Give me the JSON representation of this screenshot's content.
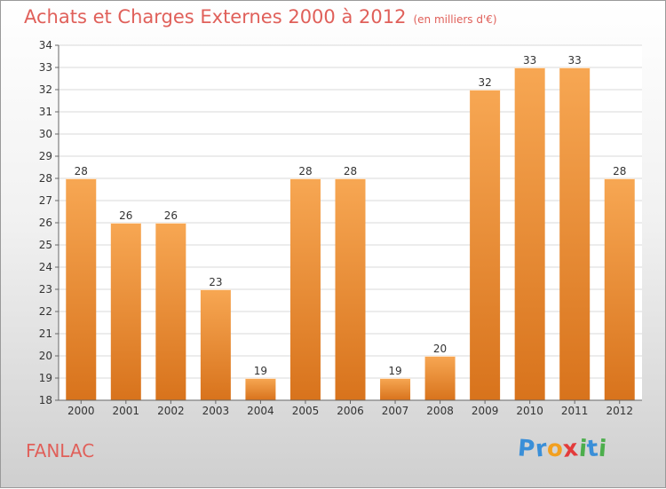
{
  "header": {
    "title": "Achats et Charges Externes 2000 à 2012",
    "unit": "(en milliers d'€)"
  },
  "commune": "FANLAC",
  "logo": {
    "letters": [
      "P",
      "r",
      "o",
      "x",
      "i",
      "t",
      "i"
    ],
    "colors": [
      "#3a8fd8",
      "#3a8fd8",
      "#f2a020",
      "#e33b3b",
      "#4cae4c",
      "#3a8fd8",
      "#4cae4c"
    ]
  },
  "colors": {
    "bar_top": "#f7a753",
    "bar_bottom": "#d8731c",
    "title": "#e0605a",
    "grid": "#d9d9d9"
  },
  "chart_data": {
    "type": "bar",
    "title": "Achats et Charges Externes 2000 à 2012",
    "categories": [
      "2000",
      "2001",
      "2002",
      "2003",
      "2004",
      "2005",
      "2006",
      "2007",
      "2008",
      "2009",
      "2010",
      "2011",
      "2012"
    ],
    "values": [
      28,
      26,
      26,
      23,
      19,
      28,
      28,
      19,
      20,
      32,
      33,
      33,
      28
    ],
    "ylim": [
      18,
      34
    ],
    "yticks": [
      18,
      19,
      20,
      21,
      22,
      23,
      24,
      25,
      26,
      27,
      28,
      29,
      30,
      31,
      32,
      33,
      34
    ],
    "grid": true,
    "data_labels": true
  }
}
